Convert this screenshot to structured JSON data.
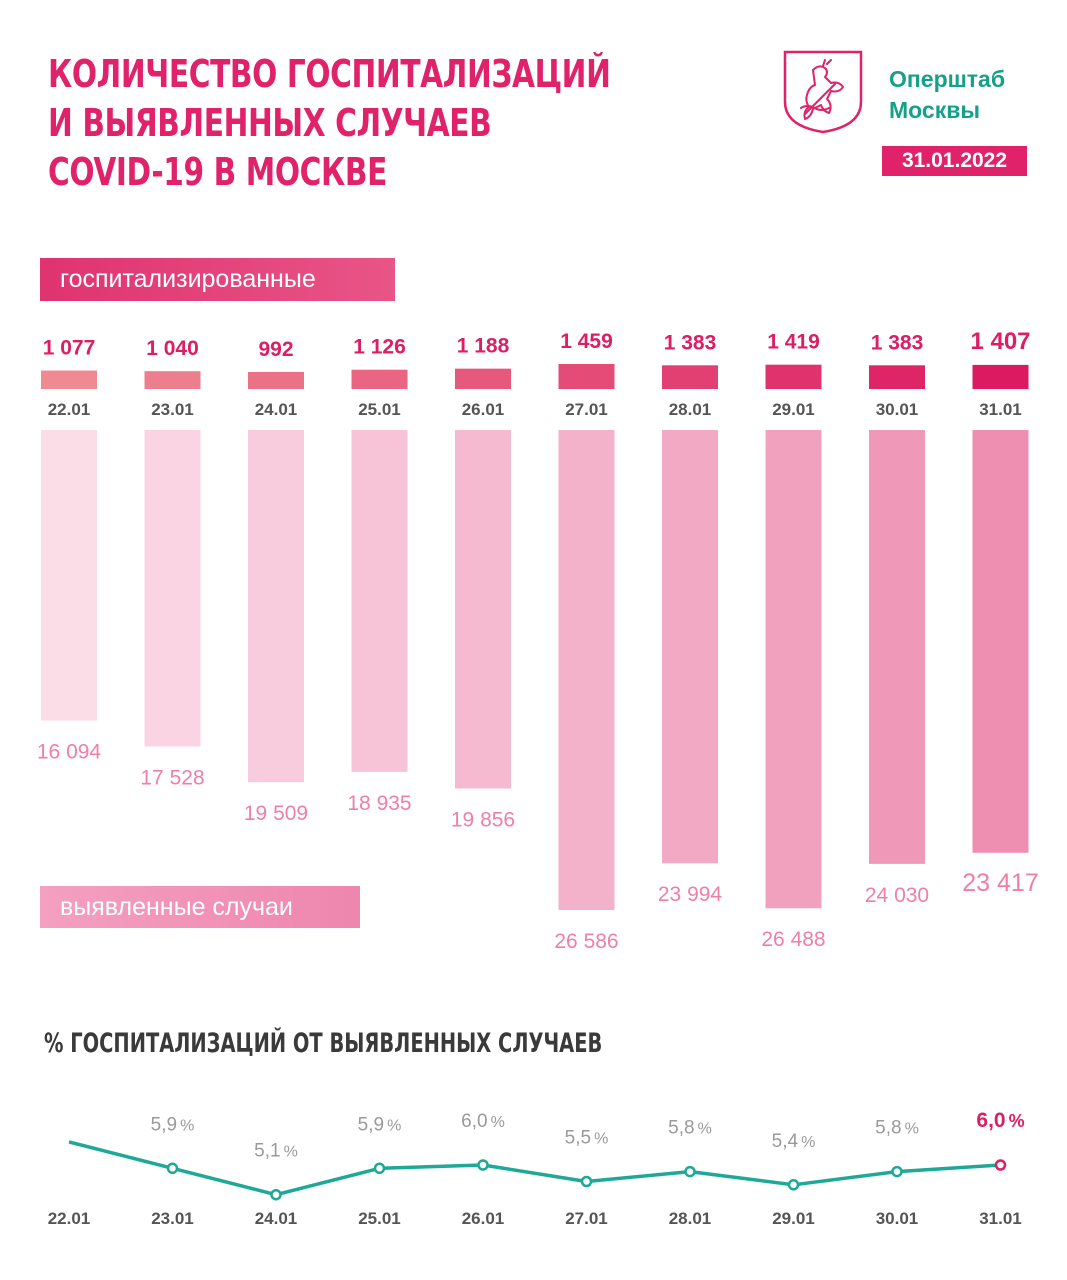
{
  "header": {
    "title_lines": [
      "КОЛИЧЕСТВО ГОСПИТАЛИЗАЦИЙ",
      "И ВЫЯВЛЕННЫХ СЛУЧАЕВ",
      "COVID-19 В МОСКВЕ"
    ],
    "org_line1": "Оперштаб",
    "org_line2": "Москвы",
    "date": "31.01.2022",
    "crest_icon": "moscow-coat-of-arms-icon"
  },
  "labels": {
    "hospitalized": "госпитализированные",
    "cases": "выявленные случаи",
    "percent_title": "% ГОСПИТАЛИЗАЦИЙ ОТ ВЫЯВЛЕННЫХ СЛУЧАЕВ"
  },
  "colors": {
    "brand": "#e0226b",
    "green": "#16a08a",
    "line": "#1ea898"
  },
  "chart_data": [
    {
      "type": "bar",
      "title": "госпитализированные",
      "categories": [
        "22.01",
        "23.01",
        "24.01",
        "25.01",
        "26.01",
        "27.01",
        "28.01",
        "29.01",
        "30.01",
        "31.01"
      ],
      "values": [
        1077,
        1040,
        992,
        1126,
        1188,
        1459,
        1383,
        1419,
        1383,
        1407
      ],
      "value_labels": [
        "1 077",
        "1 040",
        "992",
        "1 126",
        "1 188",
        "1 459",
        "1 383",
        "1 419",
        "1 383",
        "1 407"
      ]
    },
    {
      "type": "bar",
      "title": "выявленные случаи",
      "categories": [
        "22.01",
        "23.01",
        "24.01",
        "25.01",
        "26.01",
        "27.01",
        "28.01",
        "29.01",
        "30.01",
        "31.01"
      ],
      "values": [
        16094,
        17528,
        19509,
        18935,
        19856,
        26586,
        23994,
        26488,
        24030,
        23417
      ],
      "value_labels": [
        "16 094",
        "17 528",
        "19 509",
        "18 935",
        "19 856",
        "26 586",
        "23 994",
        "26 488",
        "24 030",
        "23 417"
      ]
    },
    {
      "type": "line",
      "title": "% ГОСПИТАЛИЗАЦИЙ ОТ ВЫЯВЛЕННЫХ СЛУЧАЕВ",
      "categories": [
        "22.01",
        "23.01",
        "24.01",
        "25.01",
        "26.01",
        "27.01",
        "28.01",
        "29.01",
        "30.01",
        "31.01"
      ],
      "values": [
        6.7,
        5.9,
        5.1,
        5.9,
        6.0,
        5.5,
        5.8,
        5.4,
        5.8,
        6.0
      ],
      "value_labels": [
        "",
        "5,9",
        "5,1",
        "5,9",
        "6,0",
        "5,5",
        "5,8",
        "5,4",
        "5,8",
        "6,0"
      ],
      "unit": "%"
    }
  ]
}
